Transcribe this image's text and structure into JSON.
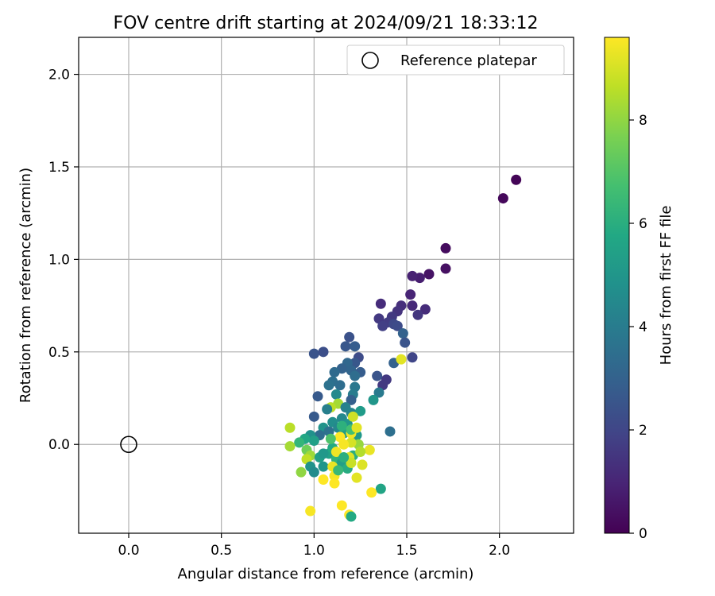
{
  "chart_data": {
    "type": "scatter",
    "title": "FOV centre drift starting at 2024/09/21 18:33:12",
    "xlabel": "Angular distance from reference (arcmin)",
    "ylabel": "Rotation from reference (arcmin)",
    "xlim": [
      -0.27,
      2.4
    ],
    "ylim": [
      -0.48,
      2.2
    ],
    "x_ticks": [
      0.0,
      0.5,
      1.0,
      1.5,
      2.0
    ],
    "x_tick_labels": [
      "0.0",
      "0.5",
      "1.0",
      "1.5",
      "2.0"
    ],
    "y_ticks": [
      0.0,
      0.5,
      1.0,
      1.5,
      2.0
    ],
    "y_tick_labels": [
      "0.0",
      "0.5",
      "1.0",
      "1.5",
      "2.0"
    ],
    "grid": true,
    "legend": {
      "placement": "top-right",
      "entries": [
        "Reference platepar"
      ]
    },
    "reference_point": {
      "x": 0.0,
      "y": 0.0,
      "label": "Reference platepar"
    },
    "colorbar": {
      "label": "Hours from first FF file",
      "colormap": "viridis",
      "range": [
        0,
        9.6
      ],
      "ticks": [
        0,
        2,
        4,
        6,
        8
      ],
      "tick_labels": [
        "0",
        "2",
        "4",
        "6",
        "8"
      ]
    },
    "points": [
      [
        2.09,
        1.43,
        0.1
      ],
      [
        2.02,
        1.33,
        0.2
      ],
      [
        1.71,
        1.06,
        0.3
      ],
      [
        1.71,
        0.95,
        0.4
      ],
      [
        1.62,
        0.92,
        0.5
      ],
      [
        1.57,
        0.9,
        0.8
      ],
      [
        1.53,
        0.91,
        0.9
      ],
      [
        1.52,
        0.81,
        1.0
      ],
      [
        1.53,
        0.75,
        1.1
      ],
      [
        1.6,
        0.73,
        1.2
      ],
      [
        1.56,
        0.7,
        1.5
      ],
      [
        1.47,
        0.75,
        1.3
      ],
      [
        1.45,
        0.72,
        1.4
      ],
      [
        1.42,
        0.69,
        1.6
      ],
      [
        1.36,
        0.76,
        1.2
      ],
      [
        1.35,
        0.68,
        1.6
      ],
      [
        1.4,
        0.66,
        1.7
      ],
      [
        1.43,
        0.65,
        2.1
      ],
      [
        1.45,
        0.64,
        2.2
      ],
      [
        1.48,
        0.6,
        3.0
      ],
      [
        1.37,
        0.64,
        1.8
      ],
      [
        1.49,
        0.55,
        2.5
      ],
      [
        1.53,
        0.47,
        2.0
      ],
      [
        1.43,
        0.44,
        3.0
      ],
      [
        1.39,
        0.35,
        1.6
      ],
      [
        1.37,
        0.32,
        1.6
      ],
      [
        1.35,
        0.28,
        3.9
      ],
      [
        1.32,
        0.24,
        5.0
      ],
      [
        1.34,
        0.37,
        2.5
      ],
      [
        1.41,
        0.07,
        3.5
      ],
      [
        1.36,
        -0.24,
        5.6
      ],
      [
        1.47,
        0.46,
        9.2
      ],
      [
        1.0,
        0.49,
        2.5
      ],
      [
        1.05,
        0.5,
        2.3
      ],
      [
        1.19,
        0.58,
        2.4
      ],
      [
        1.17,
        0.53,
        2.6
      ],
      [
        1.22,
        0.53,
        2.8
      ],
      [
        1.24,
        0.47,
        2.2
      ],
      [
        1.22,
        0.44,
        2.6
      ],
      [
        1.18,
        0.44,
        3.2
      ],
      [
        1.15,
        0.41,
        3.0
      ],
      [
        1.11,
        0.39,
        3.3
      ],
      [
        1.2,
        0.4,
        3.1
      ],
      [
        1.25,
        0.39,
        2.8
      ],
      [
        1.22,
        0.37,
        3.4
      ],
      [
        1.1,
        0.34,
        3.5
      ],
      [
        1.08,
        0.32,
        3.6
      ],
      [
        1.14,
        0.32,
        3.4
      ],
      [
        1.22,
        0.31,
        3.8
      ],
      [
        1.21,
        0.27,
        4.0
      ],
      [
        1.2,
        0.24,
        2.9
      ],
      [
        1.02,
        0.26,
        2.7
      ],
      [
        1.12,
        0.27,
        4.5
      ],
      [
        1.13,
        0.22,
        8.3
      ],
      [
        1.09,
        0.2,
        8.6
      ],
      [
        1.07,
        0.19,
        4.1
      ],
      [
        1.17,
        0.2,
        4.2
      ],
      [
        1.2,
        0.17,
        4.3
      ],
      [
        1.25,
        0.18,
        5.2
      ],
      [
        1.15,
        0.14,
        4.5
      ],
      [
        1.1,
        0.12,
        4.7
      ],
      [
        1.0,
        0.15,
        2.7
      ],
      [
        1.05,
        0.09,
        4.9
      ],
      [
        1.13,
        0.09,
        4.4
      ],
      [
        1.18,
        0.11,
        5.0
      ],
      [
        1.21,
        0.15,
        8.9
      ],
      [
        1.16,
        0.06,
        5.3
      ],
      [
        1.23,
        0.05,
        5.1
      ],
      [
        1.08,
        0.07,
        3.6
      ],
      [
        1.03,
        0.05,
        3.4
      ],
      [
        0.98,
        0.05,
        4.8
      ],
      [
        1.0,
        0.02,
        5.4
      ],
      [
        0.95,
        0.03,
        5.7
      ],
      [
        0.92,
        0.01,
        6.3
      ],
      [
        0.87,
        0.09,
        8.6
      ],
      [
        0.87,
        -0.01,
        8.3
      ],
      [
        0.96,
        -0.03,
        7.5
      ],
      [
        0.98,
        -0.06,
        8.2
      ],
      [
        0.96,
        -0.08,
        8.7
      ],
      [
        0.93,
        -0.15,
        8.0
      ],
      [
        0.98,
        -0.12,
        4.9
      ],
      [
        1.0,
        -0.15,
        4.6
      ],
      [
        1.05,
        -0.12,
        5.0
      ],
      [
        1.03,
        -0.07,
        5.4
      ],
      [
        1.08,
        -0.05,
        5.5
      ],
      [
        1.1,
        -0.02,
        5.8
      ],
      [
        1.12,
        -0.08,
        6.2
      ],
      [
        1.15,
        -0.1,
        5.4
      ],
      [
        1.18,
        -0.13,
        5.9
      ],
      [
        1.21,
        -0.06,
        6.0
      ],
      [
        1.24,
        0.0,
        8.1
      ],
      [
        1.26,
        -0.11,
        9.1
      ],
      [
        1.23,
        -0.18,
        9.2
      ],
      [
        1.3,
        -0.03,
        9.3
      ],
      [
        1.2,
        0.01,
        9.0
      ],
      [
        1.2,
        0.06,
        9.4
      ],
      [
        1.14,
        0.04,
        9.6
      ],
      [
        1.16,
        0.0,
        9.5
      ],
      [
        1.12,
        -0.04,
        9.4
      ],
      [
        1.1,
        -0.12,
        9.3
      ],
      [
        1.11,
        -0.17,
        9.5
      ],
      [
        1.11,
        -0.21,
        9.6
      ],
      [
        1.05,
        -0.19,
        9.6
      ],
      [
        1.19,
        -0.07,
        9.1
      ],
      [
        1.2,
        -0.1,
        8.8
      ],
      [
        1.15,
        -0.33,
        9.6
      ],
      [
        0.98,
        -0.36,
        9.5
      ],
      [
        1.19,
        -0.38,
        9.6
      ],
      [
        1.2,
        -0.39,
        5.8
      ],
      [
        1.31,
        -0.26,
        9.7
      ],
      [
        1.15,
        0.1,
        6.1
      ],
      [
        1.2,
        0.08,
        6.7
      ],
      [
        1.09,
        0.03,
        6.9
      ],
      [
        1.05,
        -0.05,
        5.1
      ],
      [
        1.13,
        -0.14,
        6.4
      ],
      [
        1.16,
        -0.07,
        6.0
      ],
      [
        1.23,
        0.09,
        9.2
      ],
      [
        1.25,
        -0.04,
        8.5
      ]
    ]
  }
}
